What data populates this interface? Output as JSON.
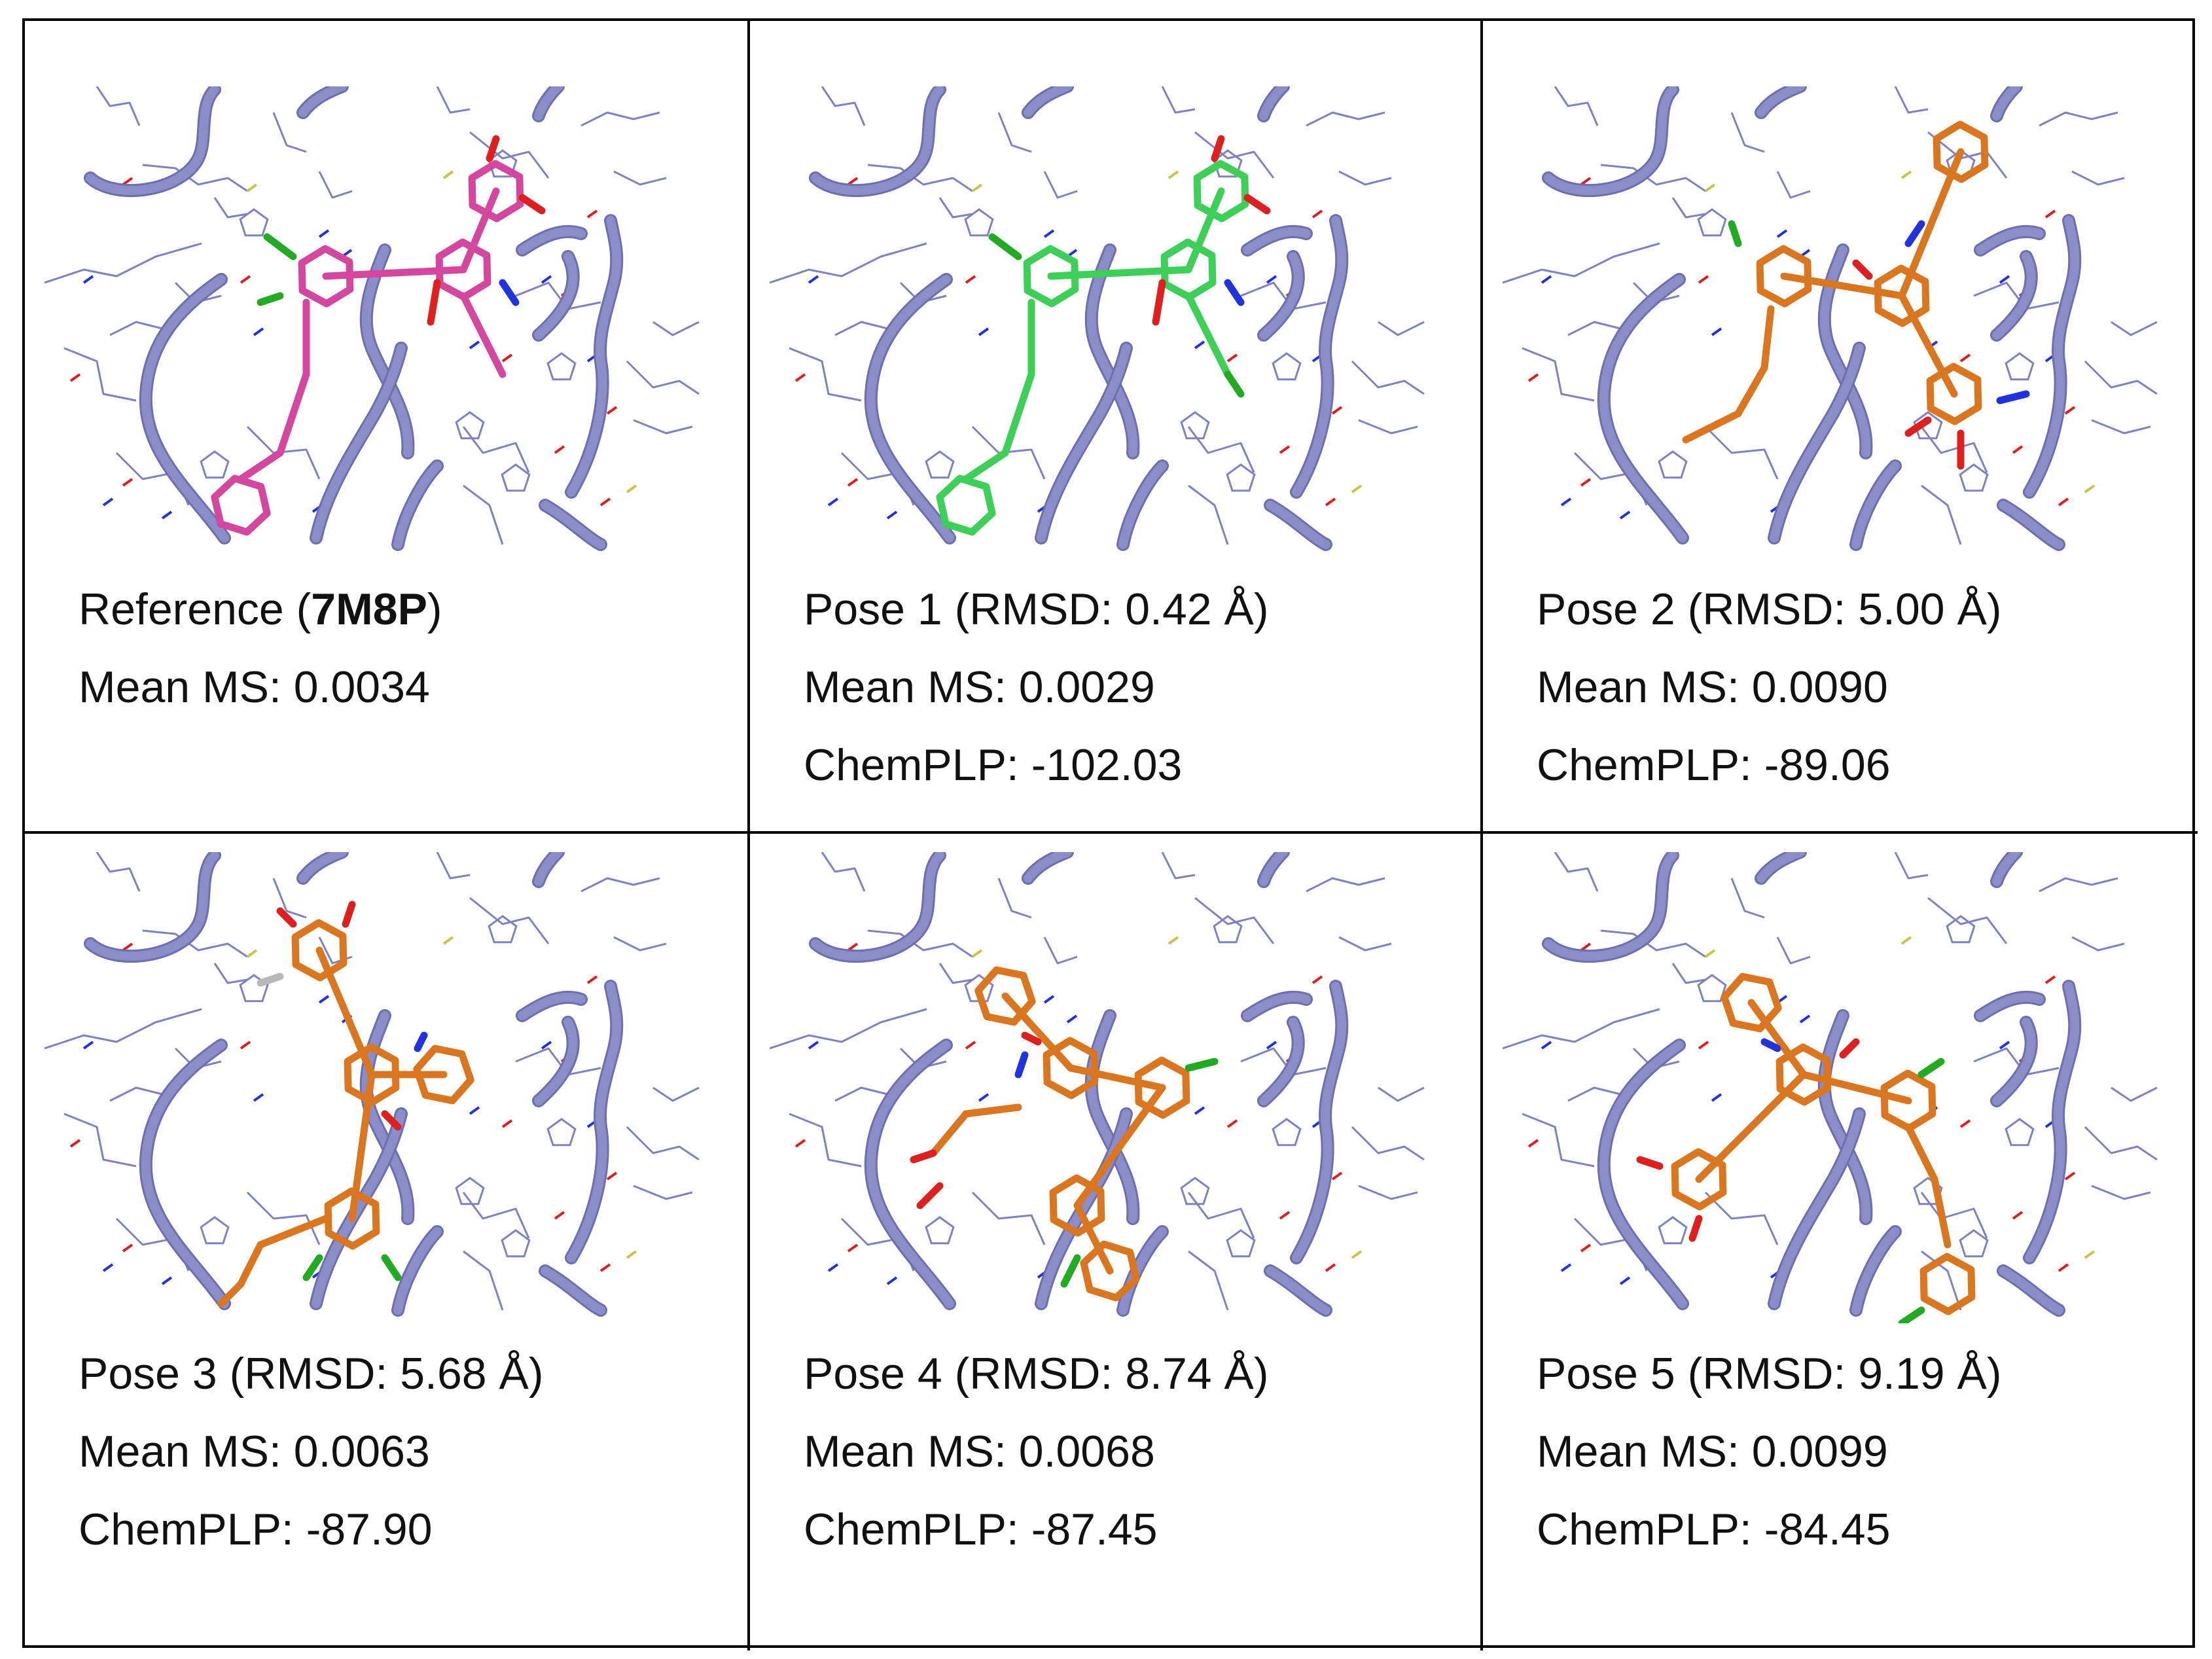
{
  "colors": {
    "ribbon": "#8b8dc8",
    "ribbon_dark": "#6d6fae",
    "sidechain": "#7f81c2",
    "nitrogen": "#2233dd",
    "oxygen": "#dd1f1f",
    "sulfur": "#c8c64a",
    "chlorine": "#22aa22",
    "hydrogen": "#b8b8b8",
    "reference_ligand": "#d4479e",
    "pose1_ligand": "#3ecf58",
    "pose_ligand": "#d9761f"
  },
  "panels": [
    {
      "ligand_color_key": "reference_ligand",
      "title_prefix": "Reference (",
      "title_bold": "7M8P",
      "title_suffix": ")",
      "mean_ms": "Mean MS: 0.0034",
      "chemplp": ""
    },
    {
      "ligand_color_key": "pose1_ligand",
      "title": "Pose 1 (RMSD: 0.42 Å)",
      "mean_ms": "Mean MS: 0.0029",
      "chemplp": "ChemPLP: -102.03"
    },
    {
      "ligand_color_key": "pose_ligand",
      "title": "Pose 2 (RMSD: 5.00 Å)",
      "mean_ms": "Mean MS: 0.0090",
      "chemplp": "ChemPLP: -89.06"
    },
    {
      "ligand_color_key": "pose_ligand",
      "title": "Pose 3 (RMSD: 5.68 Å)",
      "mean_ms": "Mean MS: 0.0063",
      "chemplp": "ChemPLP: -87.90"
    },
    {
      "ligand_color_key": "pose_ligand",
      "title": "Pose 4 (RMSD: 8.74 Å)",
      "mean_ms": "Mean MS: 0.0068",
      "chemplp": "ChemPLP: -87.45"
    },
    {
      "ligand_color_key": "pose_ligand",
      "title": "Pose 5 (RMSD: 9.19 Å)",
      "mean_ms": "Mean MS: 0.0099",
      "chemplp": "ChemPLP: -84.45"
    }
  ]
}
